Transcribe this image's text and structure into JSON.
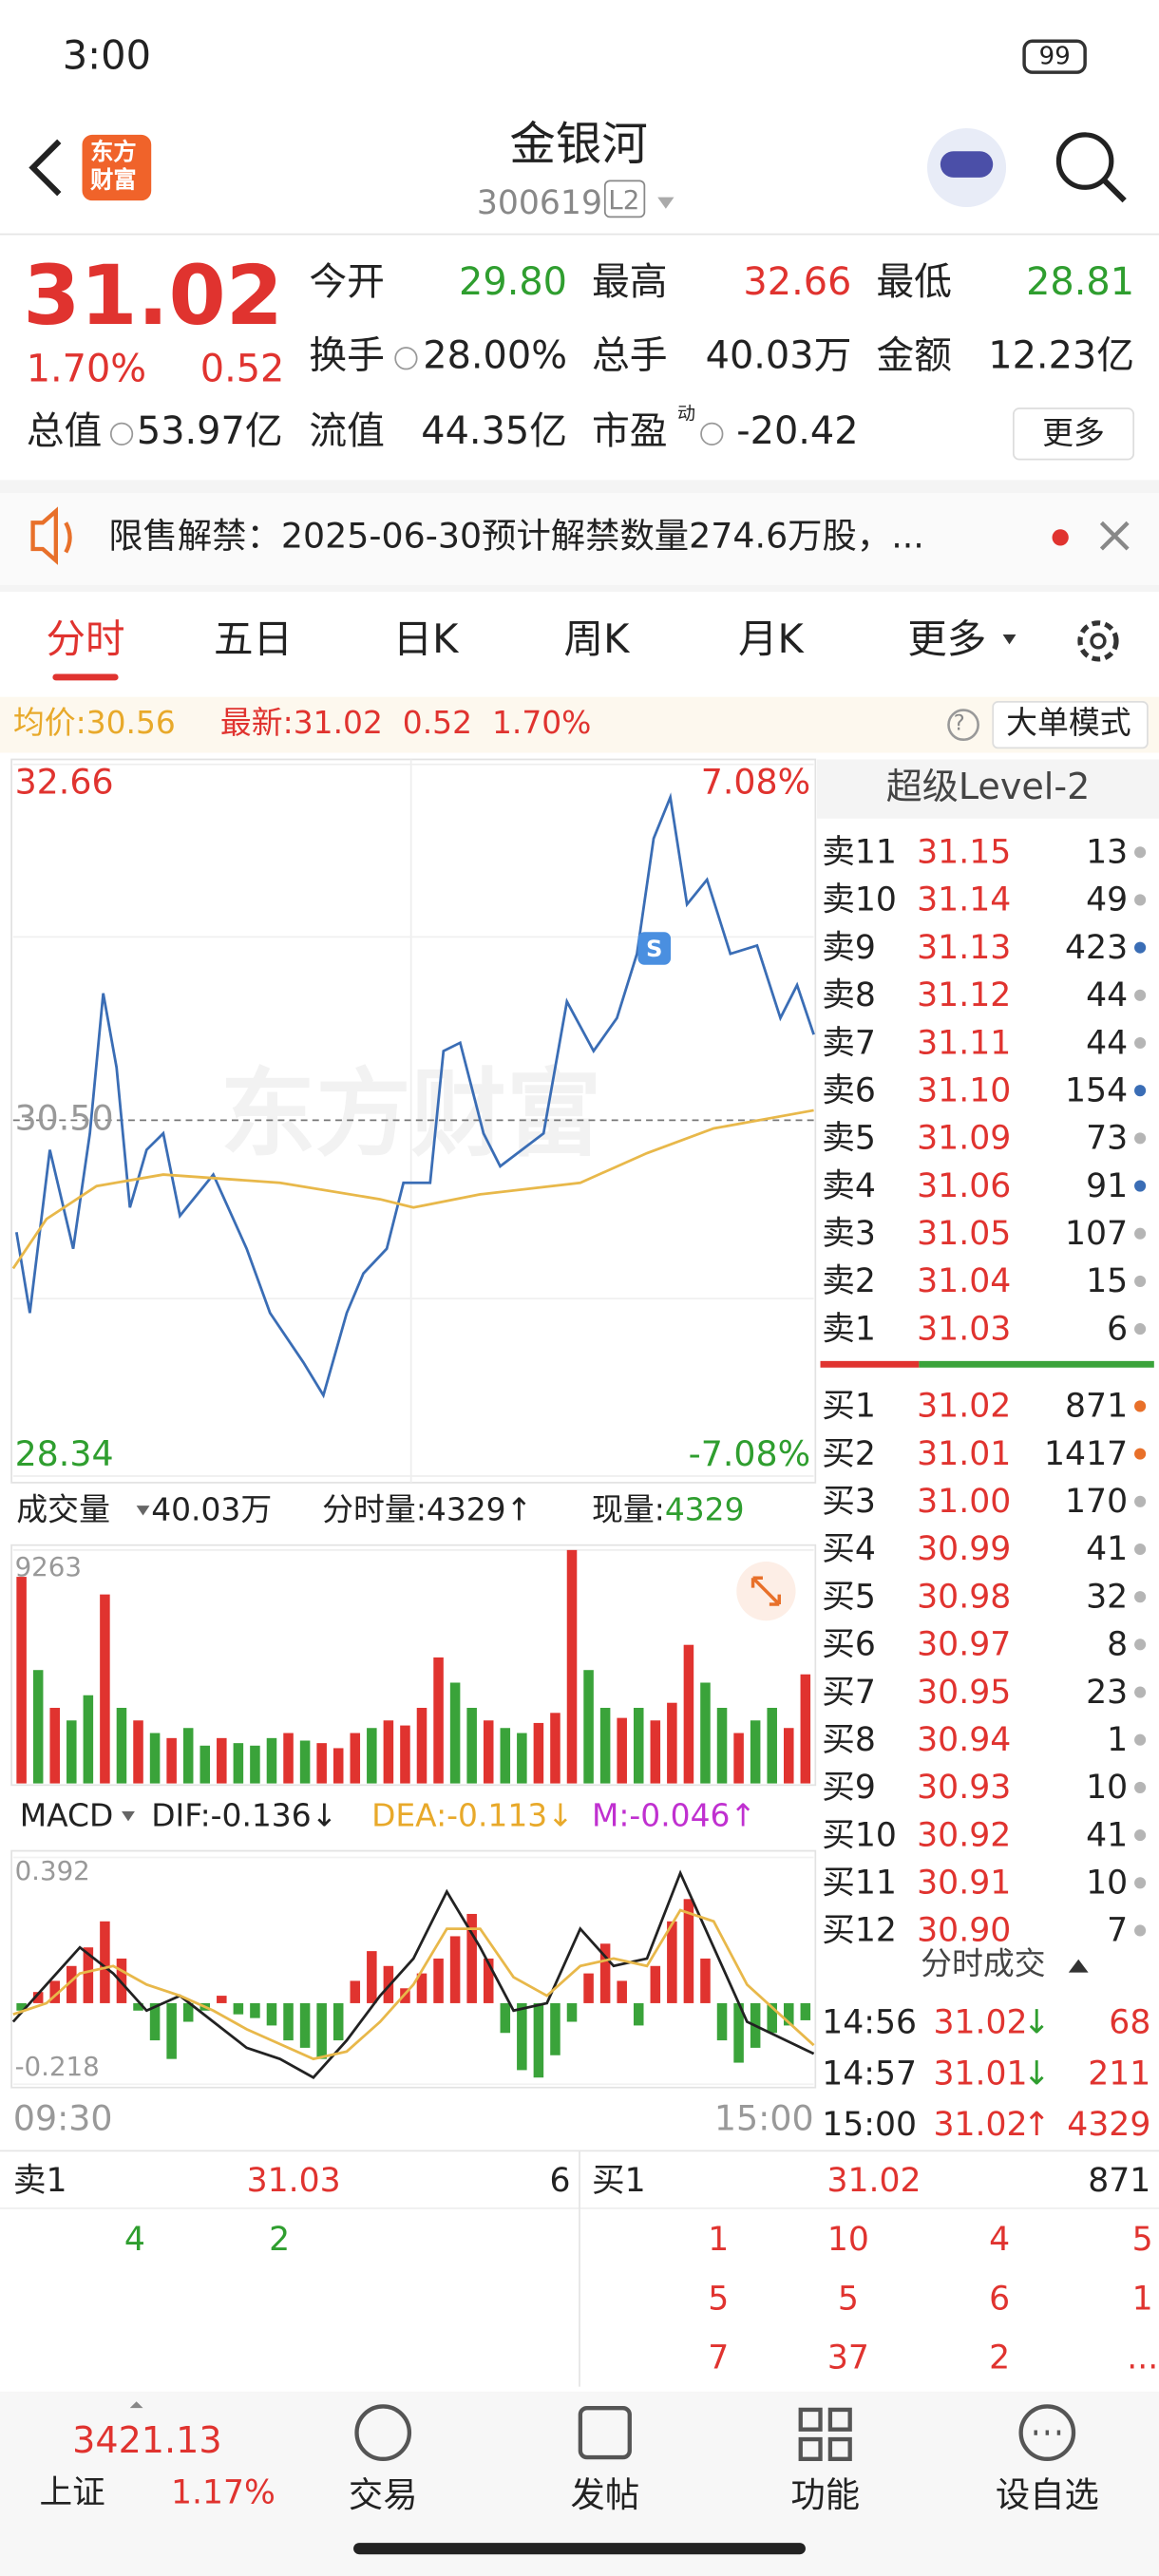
{
  "status": {
    "time": "3:00",
    "battery": "99"
  },
  "header": {
    "logo": [
      "东方",
      "财富"
    ],
    "title": "金银河",
    "code": "300619",
    "badge": "L2"
  },
  "quote": {
    "price": "31.02",
    "change_pct": "1.70%",
    "change": "0.52",
    "fields": [
      {
        "label": "今开",
        "value": "29.80"
      },
      {
        "label": "最高",
        "value": "32.66"
      },
      {
        "label": "最低",
        "value": "28.81"
      },
      {
        "label": "换手",
        "value": "28.00%"
      },
      {
        "label": "总手",
        "value": "40.03万"
      },
      {
        "label": "金额",
        "value": "12.23亿"
      },
      {
        "label": "总值",
        "value": "53.97亿"
      },
      {
        "label": "流值",
        "value": "44.35亿"
      },
      {
        "label": "市盈",
        "sup": "动",
        "value": "-20.42"
      }
    ],
    "more": "更多"
  },
  "notice": "限售解禁：2025-06-30预计解禁数量274.6万股，...",
  "tabs": [
    "分时",
    "五日",
    "日K",
    "周K",
    "月K",
    "更多"
  ],
  "info": {
    "avg_label": "均价:",
    "avg": "30.56",
    "last_label": "最新:",
    "last": "31.02",
    "change": "0.52",
    "pct": "1.70%",
    "mode": "大单模式"
  },
  "chart_data": [
    {
      "type": "line",
      "watermark": "东方财富",
      "marker": "S",
      "xlim": [
        0,
        240
      ],
      "ylim": [
        28.34,
        32.66
      ],
      "yticks": [
        32.66,
        {
          "value": 30.5,
          "label": "30.50"
        },
        28.34
      ],
      "y2lim": [
        -7.08,
        7.08
      ],
      "y2ticks": [
        {
          "value": 7.08,
          "label": "7.08%"
        },
        {
          "value": -7.08,
          "label": "-7.08%"
        }
      ],
      "series": [
        {
          "color": "#3a6db5",
          "x": [
            1,
            5,
            11,
            18,
            23,
            27,
            31,
            35,
            40,
            45,
            50,
            60,
            70,
            77,
            87,
            93,
            100,
            105,
            112,
            117,
            125,
            129,
            134,
            141,
            146,
            159,
            166,
            174,
            181,
            187,
            192,
            197,
            202,
            208,
            215,
            223,
            230,
            235,
            240
          ],
          "values": [
            29.82,
            29.33,
            30.32,
            29.72,
            30.42,
            31.27,
            30.82,
            29.97,
            30.32,
            30.42,
            29.92,
            30.17,
            29.72,
            29.33,
            29.03,
            28.83,
            29.33,
            29.57,
            29.72,
            30.12,
            30.12,
            30.92,
            30.97,
            30.42,
            30.22,
            30.42,
            31.22,
            30.92,
            31.12,
            31.51,
            32.21,
            32.46,
            31.81,
            31.96,
            31.51,
            31.56,
            31.12,
            31.32,
            31.02
          ]
        },
        {
          "color": "#e8b84a",
          "x": [
            0,
            10,
            25,
            45,
            80,
            110,
            120,
            140,
            170,
            190,
            210,
            240
          ],
          "values": [
            29.6,
            29.9,
            30.1,
            30.17,
            30.12,
            30.02,
            29.97,
            30.05,
            30.12,
            30.3,
            30.45,
            30.56
          ]
        }
      ]
    },
    {
      "type": "bar",
      "title": "成交量",
      "total": "40.03万",
      "last_label": "分时量:4329↑",
      "now_label": "现量:",
      "now": "4329",
      "xlim": [
        0,
        240
      ],
      "ylim": [
        0,
        9263
      ],
      "yticks": [
        9263
      ],
      "values": [
        8200,
        4500,
        3000,
        2500,
        3500,
        7500,
        3000,
        2500,
        2000,
        1800,
        2200,
        1500,
        1800,
        1600,
        1500,
        1800,
        2000,
        1700,
        1600,
        1400,
        2000,
        2200,
        2500,
        2300,
        3000,
        5000,
        4000,
        3000,
        2500,
        2200,
        2000,
        2400,
        2800,
        9263,
        4500,
        3000,
        2600,
        3000,
        2500,
        3200,
        5500,
        4000,
        3000,
        2000,
        2500,
        3000,
        2200,
        4329
      ],
      "colors": [
        "#e0332f",
        "#3aa33a",
        "#e0332f",
        "#3aa33a",
        "#3aa33a",
        "#e0332f",
        "#3aa33a",
        "#e0332f",
        "#3aa33a",
        "#e0332f",
        "#3aa33a",
        "#3aa33a",
        "#e0332f",
        "#3aa33a",
        "#3aa33a",
        "#3aa33a",
        "#e0332f",
        "#3aa33a",
        "#e0332f",
        "#e0332f",
        "#e0332f",
        "#3aa33a",
        "#e0332f",
        "#e0332f",
        "#e0332f",
        "#e0332f",
        "#3aa33a",
        "#3aa33a",
        "#e0332f",
        "#3aa33a",
        "#3aa33a",
        "#e0332f",
        "#e0332f",
        "#e0332f",
        "#3aa33a",
        "#3aa33a",
        "#e0332f",
        "#3aa33a",
        "#e0332f",
        "#e0332f",
        "#e0332f",
        "#3aa33a",
        "#3aa33a",
        "#e0332f",
        "#3aa33a",
        "#3aa33a",
        "#e0332f",
        "#e0332f"
      ]
    },
    {
      "type": "macd",
      "title": "MACD",
      "dif_label": "DIF:-0.136↓",
      "dea_label": "DEA:-0.113↓",
      "m_label": "M:-0.046↑",
      "xlim": [
        0,
        240
      ],
      "xticks": [
        {
          "value": 0,
          "label": "09:30"
        },
        {
          "value": 240,
          "label": "15:00"
        }
      ],
      "ylim": [
        -0.218,
        0.392
      ],
      "yticks": [
        0.392,
        -0.218
      ],
      "histogram": {
        "up_color": "#e0332f",
        "down_color": "#3aa33a",
        "values": [
          -0.02,
          0.03,
          0.06,
          0.1,
          0.15,
          0.22,
          0.12,
          -0.02,
          -0.1,
          -0.15,
          -0.05,
          -0.02,
          0.02,
          -0.03,
          -0.04,
          -0.06,
          -0.1,
          -0.12,
          -0.15,
          -0.1,
          0.06,
          0.14,
          0.1,
          0.04,
          0.08,
          0.12,
          0.18,
          0.24,
          0.12,
          -0.08,
          -0.18,
          -0.2,
          -0.14,
          -0.05,
          0.08,
          0.16,
          0.06,
          -0.06,
          0.1,
          0.22,
          0.28,
          0.12,
          -0.1,
          -0.16,
          -0.12,
          -0.08,
          -0.06,
          -0.046
        ]
      },
      "series": [
        {
          "color": "#222222",
          "x": [
            0,
            10,
            20,
            30,
            40,
            50,
            60,
            70,
            80,
            90,
            100,
            110,
            120,
            130,
            140,
            150,
            160,
            170,
            180,
            190,
            200,
            210,
            220,
            240
          ],
          "values": [
            -0.05,
            0.05,
            0.15,
            0.08,
            -0.02,
            0.02,
            -0.05,
            -0.12,
            -0.15,
            -0.2,
            -0.1,
            0.02,
            0.12,
            0.3,
            0.15,
            -0.02,
            0.0,
            0.2,
            0.1,
            0.12,
            0.35,
            0.15,
            -0.05,
            -0.136
          ]
        },
        {
          "color": "#e8b84a",
          "x": [
            0,
            10,
            20,
            30,
            40,
            50,
            60,
            70,
            80,
            90,
            100,
            110,
            120,
            130,
            140,
            150,
            160,
            170,
            180,
            190,
            200,
            210,
            220,
            240
          ],
          "values": [
            -0.03,
            0.0,
            0.08,
            0.1,
            0.05,
            0.02,
            -0.02,
            -0.07,
            -0.11,
            -0.15,
            -0.13,
            -0.05,
            0.05,
            0.2,
            0.2,
            0.07,
            0.02,
            0.1,
            0.12,
            0.1,
            0.25,
            0.22,
            0.05,
            -0.113
          ]
        }
      ]
    }
  ],
  "level2": {
    "title": "超级Level-2",
    "asks": [
      {
        "name": "卖11",
        "price": "31.15",
        "volume": "13",
        "dot": "#b5b5b5"
      },
      {
        "name": "卖10",
        "price": "31.14",
        "volume": "49",
        "dot": "#b5b5b5"
      },
      {
        "name": "卖9",
        "price": "31.13",
        "volume": "423",
        "dot": "#3a6db5"
      },
      {
        "name": "卖8",
        "price": "31.12",
        "volume": "44",
        "dot": "#b5b5b5"
      },
      {
        "name": "卖7",
        "price": "31.11",
        "volume": "44",
        "dot": "#b5b5b5"
      },
      {
        "name": "卖6",
        "price": "31.10",
        "volume": "154",
        "dot": "#3a6db5"
      },
      {
        "name": "卖5",
        "price": "31.09",
        "volume": "73",
        "dot": "#b5b5b5"
      },
      {
        "name": "卖4",
        "price": "31.06",
        "volume": "91",
        "dot": "#3a6db5"
      },
      {
        "name": "卖3",
        "price": "31.05",
        "volume": "107",
        "dot": "#b5b5b5"
      },
      {
        "name": "卖2",
        "price": "31.04",
        "volume": "15",
        "dot": "#b5b5b5"
      },
      {
        "name": "卖1",
        "price": "31.03",
        "volume": "6",
        "dot": "#b5b5b5"
      }
    ],
    "bids": [
      {
        "name": "买1",
        "price": "31.02",
        "volume": "871",
        "dot": "#e8702a"
      },
      {
        "name": "买2",
        "price": "31.01",
        "volume": "1417",
        "dot": "#e8702a"
      },
      {
        "name": "买3",
        "price": "31.00",
        "volume": "170",
        "dot": "#b5b5b5"
      },
      {
        "name": "买4",
        "price": "30.99",
        "volume": "41",
        "dot": "#b5b5b5"
      },
      {
        "name": "买5",
        "price": "30.98",
        "volume": "32",
        "dot": "#b5b5b5"
      },
      {
        "name": "买6",
        "price": "30.97",
        "volume": "8",
        "dot": "#b5b5b5"
      },
      {
        "name": "买7",
        "price": "30.95",
        "volume": "23",
        "dot": "#b5b5b5"
      },
      {
        "name": "买8",
        "price": "30.94",
        "volume": "1",
        "dot": "#b5b5b5"
      },
      {
        "name": "买9",
        "price": "30.93",
        "volume": "10",
        "dot": "#b5b5b5"
      },
      {
        "name": "买10",
        "price": "30.92",
        "volume": "41",
        "dot": "#b5b5b5"
      },
      {
        "name": "买11",
        "price": "30.91",
        "volume": "10",
        "dot": "#b5b5b5"
      },
      {
        "name": "买12",
        "price": "30.90",
        "volume": "7",
        "dot": "#b5b5b5"
      }
    ]
  },
  "trades": {
    "title": "分时成交",
    "rows": [
      {
        "time": "14:56",
        "price": "31.02",
        "arrow": "↓",
        "volume": "68"
      },
      {
        "time": "14:57",
        "price": "31.01",
        "arrow": "↓",
        "volume": "211"
      },
      {
        "time": "15:00",
        "price": "31.02",
        "arrow": "↑",
        "volume": "4329"
      }
    ]
  },
  "book": {
    "ask": {
      "label": "卖1",
      "price": "31.03",
      "volume": "6"
    },
    "bid": {
      "label": "买1",
      "price": "31.02",
      "volume": "871"
    },
    "ask_rows": [
      [
        "4",
        "2"
      ]
    ],
    "bid_rows": [
      [
        "1",
        "10",
        "4",
        "5"
      ],
      [
        "5",
        "5",
        "6",
        "1"
      ],
      [
        "7",
        "37",
        "2",
        "..."
      ]
    ]
  },
  "nav": {
    "index_value": "3421.13",
    "index_name": "上证",
    "index_pct": "1.17%",
    "items": [
      "交易",
      "发帖",
      "功能",
      "设自选"
    ]
  }
}
